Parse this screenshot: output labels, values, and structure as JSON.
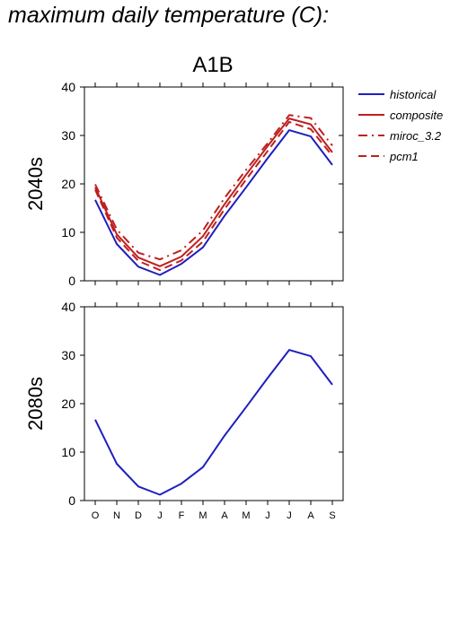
{
  "page_title": "maximum daily temperature (C):",
  "colors": {
    "historical": "#1f1fbf",
    "projection": "#bf1f1f",
    "axis": "#000000"
  },
  "chart_data": [
    {
      "type": "line",
      "title": "A1B",
      "ylabel": "2040s",
      "categories": [
        "O",
        "N",
        "D",
        "J",
        "F",
        "M",
        "A",
        "M",
        "J",
        "J",
        "A",
        "S"
      ],
      "ylim": [
        0,
        40
      ],
      "yticks": [
        0,
        10,
        20,
        30,
        40
      ],
      "legend": "right",
      "series": [
        {
          "name": "historical",
          "style": "solid",
          "color": "#1f1fbf",
          "values": [
            16.7,
            7.6,
            2.9,
            1.2,
            3.5,
            6.9,
            13.4,
            19.3,
            25.3,
            31.1,
            29.8,
            23.9
          ]
        },
        {
          "name": "composite",
          "style": "solid",
          "color": "#bf1f1f",
          "values": [
            19.3,
            9.6,
            4.8,
            3.0,
            5.0,
            9.2,
            15.8,
            21.9,
            27.8,
            33.5,
            32.3,
            26.5
          ]
        },
        {
          "name": "miroc_3.2",
          "style": "dashdot",
          "color": "#bf1f1f",
          "values": [
            19.9,
            10.6,
            5.8,
            4.4,
            6.3,
            10.4,
            17.1,
            22.9,
            28.4,
            34.2,
            33.6,
            27.9
          ]
        },
        {
          "name": "pcm1",
          "style": "dash",
          "color": "#bf1f1f",
          "values": [
            18.8,
            8.9,
            4.1,
            2.2,
            4.2,
            8.1,
            14.8,
            20.9,
            26.8,
            32.8,
            31.3,
            25.8
          ]
        }
      ]
    },
    {
      "type": "line",
      "ylabel": "2080s",
      "categories": [
        "O",
        "N",
        "D",
        "J",
        "F",
        "M",
        "A",
        "M",
        "J",
        "J",
        "A",
        "S"
      ],
      "ylim": [
        0,
        40
      ],
      "yticks": [
        0,
        10,
        20,
        30,
        40
      ],
      "series": [
        {
          "name": "historical",
          "style": "solid",
          "color": "#1f1fbf",
          "values": [
            16.7,
            7.6,
            2.9,
            1.2,
            3.5,
            6.9,
            13.4,
            19.3,
            25.3,
            31.1,
            29.8,
            23.9
          ]
        }
      ]
    }
  ]
}
